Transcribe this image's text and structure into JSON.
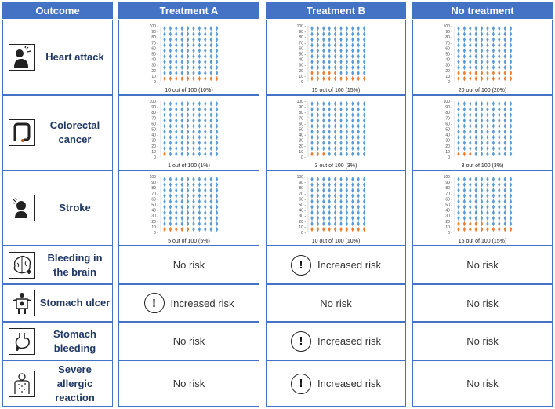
{
  "headers": [
    "Outcome",
    "Treatment A",
    "Treatment B",
    "No treatment"
  ],
  "colors": {
    "header_bg": "#4472c4",
    "unaffected": "#5b9bd5",
    "affected": "#ed7d31"
  },
  "chart_data": [
    {
      "type": "scatter",
      "title": "",
      "outcome": "Heart attack",
      "treatment": "Treatment A",
      "ylim": [
        0,
        100
      ],
      "yticks": [
        0,
        10,
        20,
        30,
        40,
        50,
        60,
        70,
        80,
        90,
        100
      ],
      "affected_per_100": 10,
      "caption": "10 out of 100 (10%)"
    },
    {
      "type": "scatter",
      "title": "",
      "outcome": "Heart attack",
      "treatment": "Treatment B",
      "ylim": [
        0,
        100
      ],
      "yticks": [
        0,
        10,
        20,
        30,
        40,
        50,
        60,
        70,
        80,
        90,
        100
      ],
      "affected_per_100": 15,
      "caption": "15 out of 100 (15%)"
    },
    {
      "type": "scatter",
      "title": "",
      "outcome": "Heart attack",
      "treatment": "No treatment",
      "ylim": [
        0,
        100
      ],
      "yticks": [
        0,
        10,
        20,
        30,
        40,
        50,
        60,
        70,
        80,
        90,
        100
      ],
      "affected_per_100": 20,
      "caption": "20 out of 100 (20%)"
    },
    {
      "type": "scatter",
      "title": "",
      "outcome": "Colorectal cancer",
      "treatment": "Treatment A",
      "ylim": [
        0,
        100
      ],
      "yticks": [
        0,
        10,
        20,
        30,
        40,
        50,
        60,
        70,
        80,
        90,
        100
      ],
      "affected_per_100": 1,
      "caption": "1 out of 100 (1%)"
    },
    {
      "type": "scatter",
      "title": "",
      "outcome": "Colorectal cancer",
      "treatment": "Treatment B",
      "ylim": [
        0,
        100
      ],
      "yticks": [
        0,
        10,
        20,
        30,
        40,
        50,
        60,
        70,
        80,
        90,
        100
      ],
      "affected_per_100": 3,
      "caption": "3 out of 100 (3%)"
    },
    {
      "type": "scatter",
      "title": "",
      "outcome": "Colorectal cancer",
      "treatment": "No treatment",
      "ylim": [
        0,
        100
      ],
      "yticks": [
        0,
        10,
        20,
        30,
        40,
        50,
        60,
        70,
        80,
        90,
        100
      ],
      "affected_per_100": 3,
      "caption": "3 out of 100 (3%)"
    },
    {
      "type": "scatter",
      "title": "",
      "outcome": "Stroke",
      "treatment": "Treatment A",
      "ylim": [
        0,
        100
      ],
      "yticks": [
        0,
        10,
        20,
        30,
        40,
        50,
        60,
        70,
        80,
        90,
        100
      ],
      "affected_per_100": 5,
      "caption": "5 out of 100 (5%)"
    },
    {
      "type": "scatter",
      "title": "",
      "outcome": "Stroke",
      "treatment": "Treatment B",
      "ylim": [
        0,
        100
      ],
      "yticks": [
        0,
        10,
        20,
        30,
        40,
        50,
        60,
        70,
        80,
        90,
        100
      ],
      "affected_per_100": 10,
      "caption": "10 out of 100 (10%)"
    },
    {
      "type": "scatter",
      "title": "",
      "outcome": "Stroke",
      "treatment": "No treatment",
      "ylim": [
        0,
        100
      ],
      "yticks": [
        0,
        10,
        20,
        30,
        40,
        50,
        60,
        70,
        80,
        90,
        100
      ],
      "affected_per_100": 15,
      "caption": "15 out of 100 (15%)"
    }
  ],
  "outcomes": [
    {
      "label": "Heart attack",
      "icon": "heart-attack-icon"
    },
    {
      "label": "Colorectal cancer",
      "icon": "colon-icon"
    },
    {
      "label": "Stroke",
      "icon": "stroke-icon"
    },
    {
      "label": "Bleeding in the brain",
      "icon": "brain-bleed-icon"
    },
    {
      "label": "Stomach ulcer",
      "icon": "stomach-ulcer-icon"
    },
    {
      "label": "Stomach bleeding",
      "icon": "stomach-bleeding-icon"
    },
    {
      "label": "Severe allergic reaction",
      "icon": "allergic-reaction-icon"
    }
  ],
  "risk_rows": [
    {
      "outcome": "Bleeding in the brain",
      "values": [
        "No risk",
        "Increased risk",
        "No risk"
      ]
    },
    {
      "outcome": "Stomach ulcer",
      "values": [
        "Increased risk",
        "No risk",
        "No risk"
      ]
    },
    {
      "outcome": "Stomach bleeding",
      "values": [
        "No risk",
        "Increased risk",
        "No risk"
      ]
    },
    {
      "outcome": "Severe allergic reaction",
      "values": [
        "No risk",
        "Increased risk",
        "No risk"
      ]
    }
  ],
  "warning_symbol": "!"
}
